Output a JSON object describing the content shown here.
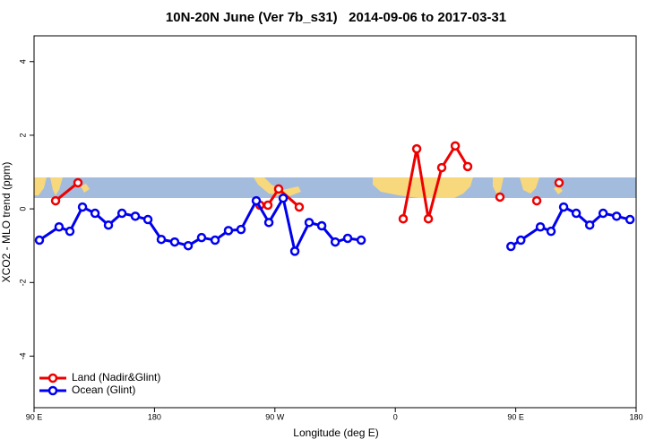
{
  "chart_data": {
    "type": "line",
    "title": "10N-20N June (Ver 7b_s31)   2014-09-06 to 2017-03-31",
    "xlabel": "Longitude (deg E)",
    "ylabel": "XCO2 - MLO trend (ppm)",
    "xlim": [
      90,
      540
    ],
    "ylim": [
      -5.4,
      4.7
    ],
    "xticks": [
      {
        "value": 90,
        "label": "90 E"
      },
      180,
      {
        "value": 270,
        "label": "90 W"
      },
      {
        "value": 360,
        "label": "0"
      },
      {
        "value": 450,
        "label": "90 E"
      },
      {
        "value": 540,
        "label": "180"
      }
    ],
    "yticks": [
      -4,
      -2,
      0,
      2,
      4
    ],
    "legend": "bottom-left",
    "series": [
      {
        "name": "Land (Nadir&Glint)",
        "color": "#ee0000",
        "x": [
          106.1,
          122.8,
          null,
          258.8,
          264.8,
          272.8,
          288.2,
          null,
          365.9,
          376,
          384.7,
          394.7,
          404.8,
          414.1,
          null,
          438.2,
          null,
          465.7,
          null,
          482.4
        ],
        "values": [
          0.22,
          0.71,
          null,
          0.1,
          0.1,
          0.54,
          0.05,
          null,
          -0.27,
          1.63,
          -0.27,
          1.12,
          1.71,
          1.15,
          null,
          0.32,
          null,
          0.22,
          null,
          0.71
        ]
      },
      {
        "name": "Ocean (Glint)",
        "color": "#0000ee",
        "x": [
          94,
          108.7,
          116.8,
          126.2,
          135.6,
          145.6,
          155.7,
          165.7,
          175.1,
          185.1,
          195.1,
          205.2,
          215.2,
          225.3,
          235.3,
          244.7,
          256.1,
          265.5,
          276.2,
          284.9,
          295.6,
          305,
          315.1,
          324.4,
          334.5,
          null,
          446.4,
          453.8,
          468.4,
          476.4,
          485.8,
          495.2,
          505.3,
          515.3,
          525.4,
          535.4
        ],
        "values": [
          -0.85,
          -0.49,
          -0.61,
          0.05,
          -0.12,
          -0.44,
          -0.12,
          -0.2,
          -0.29,
          -0.83,
          -0.9,
          -1.0,
          -0.78,
          -0.85,
          -0.59,
          -0.56,
          0.22,
          -0.37,
          0.29,
          -1.15,
          -0.37,
          -0.46,
          -0.9,
          -0.8,
          -0.85,
          null,
          -1.02,
          -0.85,
          -0.49,
          -0.61,
          0.05,
          -0.12,
          -0.44,
          -0.12,
          -0.2,
          -0.29
        ]
      }
    ]
  }
}
